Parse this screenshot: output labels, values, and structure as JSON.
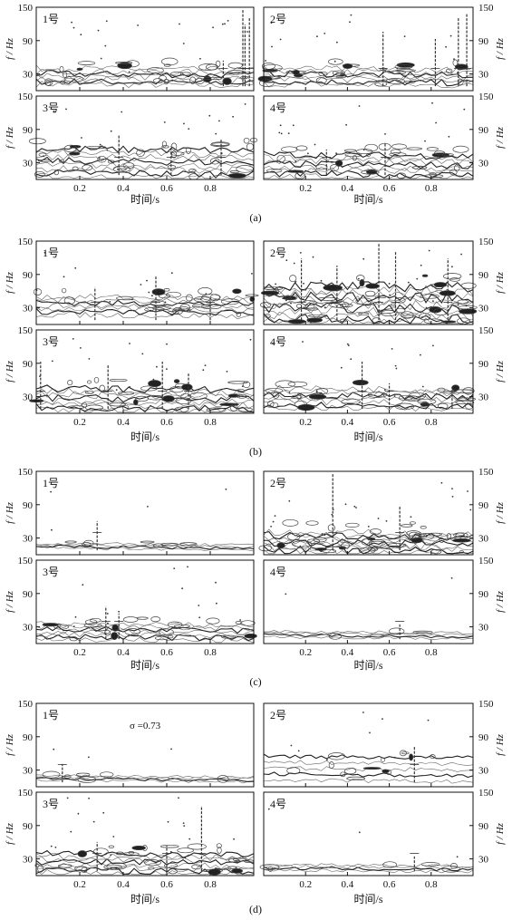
{
  "figure": {
    "panels": [
      {
        "caption": "(a)",
        "xlabel": "时间/s",
        "ylabel": "f / Hz",
        "xticks": [
          "0.2",
          "0.4",
          "0.6",
          "0.8"
        ],
        "yticks": [
          "30",
          "90",
          "150"
        ],
        "subplots": [
          {
            "label": "1号",
            "density": 0.55,
            "band": [
              12,
              40
            ],
            "streaks": [
              [
                0.86,
                0.3
              ],
              [
                0.95,
                1.0
              ],
              [
                0.98,
                0.9
              ],
              [
                0.96,
                0.8
              ]
            ]
          },
          {
            "label": "2号",
            "density": 0.55,
            "band": [
              12,
              40
            ],
            "streaks": [
              [
                0.57,
                0.7
              ],
              [
                0.82,
                0.6
              ],
              [
                0.93,
                0.9
              ],
              [
                0.97,
                0.95
              ]
            ]
          },
          {
            "label": "3号",
            "density": 0.65,
            "band": [
              5,
              55
            ],
            "streaks": [
              [
                0.38,
                0.5
              ],
              [
                0.62,
                0.35
              ],
              [
                0.85,
                0.45
              ]
            ]
          },
          {
            "label": "4号",
            "density": 0.6,
            "band": [
              5,
              45
            ],
            "streaks": [
              [
                0.3,
                0.3
              ],
              [
                0.58,
                0.4
              ]
            ]
          }
        ]
      },
      {
        "caption": "(b)",
        "xlabel": "时间/s",
        "ylabel": "f / Hz",
        "xticks": [
          "0.2",
          "0.4",
          "0.6",
          "0.8"
        ],
        "yticks": [
          "30",
          "90",
          "150"
        ],
        "subplots": [
          {
            "label": "1号",
            "density": 0.5,
            "band": [
              18,
              50
            ],
            "streaks": [
              [
                0.27,
                0.4
              ],
              [
                0.55,
                0.55
              ],
              [
                0.8,
                0.25
              ]
            ]
          },
          {
            "label": "2号",
            "density": 1.0,
            "band": [
              5,
              70
            ],
            "streaks": [
              [
                0.18,
                0.8
              ],
              [
                0.35,
                0.7
              ],
              [
                0.55,
                1.0
              ],
              [
                0.63,
                0.9
              ],
              [
                0.88,
                0.8
              ]
            ]
          },
          {
            "label": "3号",
            "density": 0.65,
            "band": [
              5,
              45
            ],
            "streaks": [
              [
                0.02,
                0.6
              ],
              [
                0.33,
                0.55
              ],
              [
                0.58,
                0.6
              ],
              [
                0.7,
                0.45
              ]
            ]
          },
          {
            "label": "4号",
            "density": 0.55,
            "band": [
              10,
              45
            ],
            "streaks": [
              [
                0.47,
                0.6
              ],
              [
                0.6,
                0.3
              ],
              [
                0.9,
                0.25
              ]
            ]
          }
        ]
      },
      {
        "caption": "(c)",
        "xlabel": "时间/s",
        "ylabel": "f / Hz",
        "xticks": [
          "0.2",
          "0.4",
          "0.6",
          "0.8"
        ],
        "yticks": [
          "30",
          "90",
          "150"
        ],
        "subplots": [
          {
            "label": "1号",
            "density": 0.12,
            "band": [
              12,
              20
            ],
            "streaks": [
              [
                0.28,
                0.35
              ]
            ]
          },
          {
            "label": "2号",
            "density": 0.7,
            "band": [
              5,
              40
            ],
            "streaks": [
              [
                0.33,
                1.0
              ],
              [
                0.65,
                0.55
              ]
            ]
          },
          {
            "label": "3号",
            "density": 0.45,
            "band": [
              8,
              35
            ],
            "streaks": [
              [
                0.32,
                0.4
              ],
              [
                0.38,
                0.3
              ]
            ]
          },
          {
            "label": "4号",
            "density": 0.08,
            "band": [
              12,
              22
            ],
            "streaks": [
              [
                0.65,
                0.15
              ]
            ]
          }
        ]
      },
      {
        "caption": "(d)",
        "xlabel": "时间/s",
        "ylabel": "f / Hz",
        "xticks": [
          "0.2",
          "0.4",
          "0.6",
          "0.8"
        ],
        "yticks": [
          "30",
          "90",
          "150"
        ],
        "annotation": "σ =0.73",
        "subplots": [
          {
            "label": "1号",
            "density": 0.1,
            "band": [
              12,
              20
            ],
            "streaks": [
              [
                0.12,
                0.2
              ]
            ]
          },
          {
            "label": "2号",
            "density": 0.25,
            "band": [
              12,
              55
            ],
            "streaks": [
              [
                0.72,
                0.45
              ]
            ]
          },
          {
            "label": "3号",
            "density": 0.6,
            "band": [
              5,
              40
            ],
            "streaks": [
              [
                0.28,
                0.35
              ],
              [
                0.6,
                0.3
              ],
              [
                0.76,
                0.85
              ]
            ]
          },
          {
            "label": "4号",
            "density": 0.1,
            "band": [
              10,
              20
            ],
            "streaks": [
              [
                0.72,
                0.15
              ]
            ]
          }
        ]
      }
    ]
  }
}
